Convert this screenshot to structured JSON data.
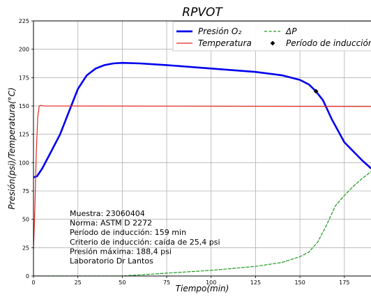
{
  "chart_data": {
    "type": "line",
    "title": "RPVOT",
    "xlabel": "Tiempo(min)",
    "ylabel": "Presión(psi)/Temperatura(°C)",
    "xlim": [
      0,
      190
    ],
    "ylim": [
      0,
      225
    ],
    "x_ticks": [
      0,
      25,
      50,
      75,
      100,
      125,
      150,
      175
    ],
    "y_ticks": [
      0,
      25,
      50,
      75,
      100,
      125,
      150,
      175,
      200,
      225
    ],
    "grid": true,
    "legend_position": "top-right",
    "legend": [
      {
        "label": "Presión O₂",
        "style": "solid-thick"
      },
      {
        "label": "ΔP",
        "style": "dashed"
      },
      {
        "label": "Temperatura",
        "style": "solid"
      },
      {
        "label": "Período de inducción",
        "style": "diamond-marker"
      }
    ],
    "series": [
      {
        "name": "Presión O₂",
        "color": "#0000ee",
        "points": [
          [
            0,
            87
          ],
          [
            2,
            88
          ],
          [
            5,
            95
          ],
          [
            10,
            110
          ],
          [
            15,
            125
          ],
          [
            20,
            145
          ],
          [
            25,
            165
          ],
          [
            30,
            177
          ],
          [
            35,
            183
          ],
          [
            40,
            186
          ],
          [
            45,
            187.5
          ],
          [
            50,
            188
          ],
          [
            60,
            187.5
          ],
          [
            75,
            186
          ],
          [
            100,
            183
          ],
          [
            125,
            180
          ],
          [
            140,
            177
          ],
          [
            150,
            173
          ],
          [
            155,
            169
          ],
          [
            159,
            163
          ],
          [
            163,
            155
          ],
          [
            168,
            138
          ],
          [
            175,
            118
          ],
          [
            185,
            102
          ],
          [
            190,
            95
          ]
        ]
      },
      {
        "name": "Temperatura",
        "color": "#e8251f",
        "points": [
          [
            0,
            23
          ],
          [
            0.8,
            60
          ],
          [
            1.6,
            110
          ],
          [
            2.4,
            140
          ],
          [
            3.2,
            150
          ],
          [
            4,
            150.5
          ],
          [
            6,
            150
          ],
          [
            190,
            149.5
          ]
        ]
      },
      {
        "name": "ΔP",
        "color": "#1a9a1a",
        "points": [
          [
            0,
            0
          ],
          [
            50,
            0
          ],
          [
            75,
            2.5
          ],
          [
            100,
            5
          ],
          [
            125,
            8.5
          ],
          [
            140,
            12
          ],
          [
            150,
            17
          ],
          [
            155,
            21
          ],
          [
            160,
            30
          ],
          [
            165,
            45
          ],
          [
            170,
            62
          ],
          [
            175,
            71
          ],
          [
            180,
            79
          ],
          [
            185,
            86
          ],
          [
            190,
            92
          ]
        ]
      }
    ],
    "marker": {
      "label": "Período de inducción",
      "x": 159,
      "y": 163,
      "color": "#000000"
    },
    "annotation_lines": [
      "Muestra: 23060404",
      "Norma: ASTM D 2272",
      "Período de inducción: 159 min",
      "Criterio de inducción: caída de 25,4 psi",
      "Presión máxima: 188,4 psi",
      "Laboratorio Dr Lantos"
    ]
  }
}
